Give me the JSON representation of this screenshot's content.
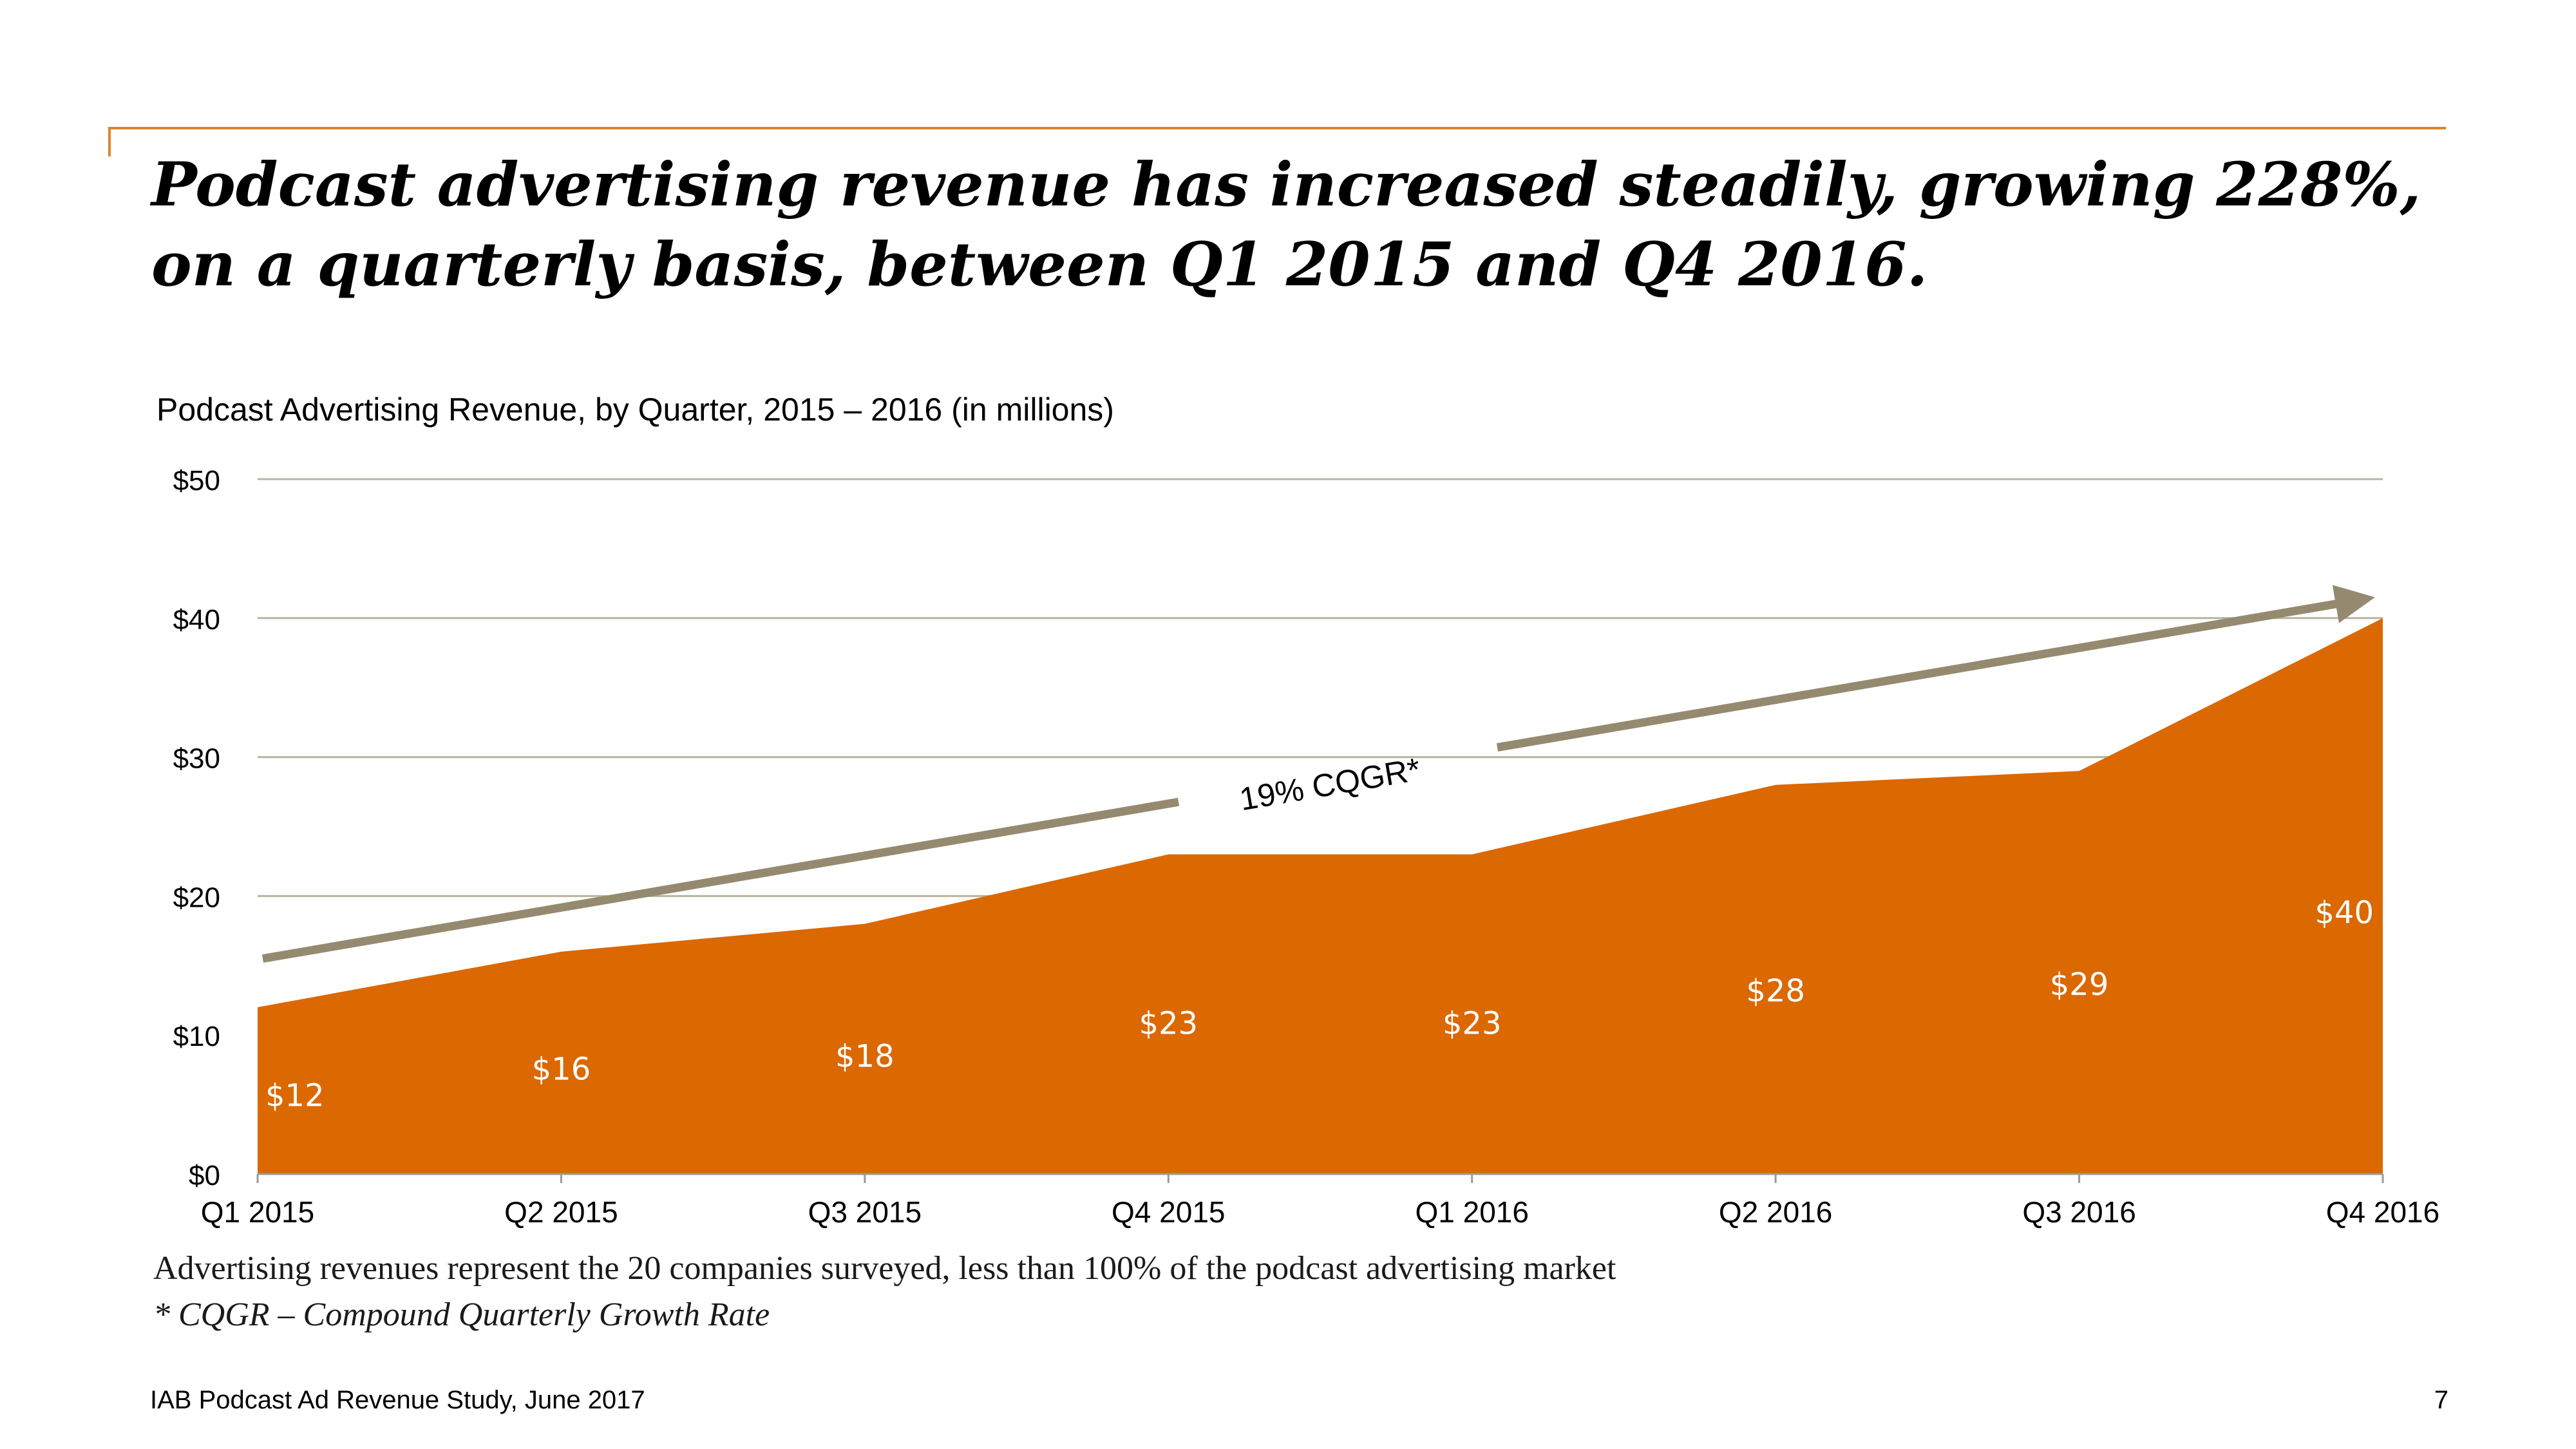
{
  "slide": {
    "headline_line1": "Podcast advertising revenue has increased steadily, growing 228%,",
    "headline_line2": "on a quarterly basis, between Q1 2015 and Q4 2016.",
    "note": "Advertising revenues represent the 20 companies surveyed, less than 100% of the podcast advertising market",
    "footnote": "* CQGR – Compound Quarterly Growth Rate",
    "source": "IAB Podcast Ad Revenue Study, June 2017",
    "page_number": "7"
  },
  "colors": {
    "accent_rule": "#d8862a",
    "area_fill": "#db6800",
    "trend_arrow": "#958a6f",
    "gridline": "#b8b49e"
  },
  "chart_data": {
    "type": "area",
    "title": "Podcast Advertising Revenue, by Quarter, 2015 – 2016 (in millions)",
    "categories": [
      "Q1 2015",
      "Q2 2015",
      "Q3 2015",
      "Q4 2015",
      "Q1 2016",
      "Q2 2016",
      "Q3 2016",
      "Q4 2016"
    ],
    "series": [
      {
        "values": [
          12,
          16,
          18,
          23,
          23,
          28,
          29,
          40
        ],
        "data_labels": [
          "$12",
          "$16",
          "$18",
          "$23",
          "$23",
          "$28",
          "$29",
          "$40"
        ]
      }
    ],
    "ylim": [
      0,
      50
    ],
    "yticks": [
      0,
      10,
      20,
      30,
      40,
      50
    ],
    "ytick_labels": [
      "$0",
      "$10",
      "$20",
      "$30",
      "$40",
      "$50"
    ],
    "grid": true,
    "legend": "none",
    "annotation": {
      "text": "19% CQGR*",
      "type": "trend-arrow",
      "from_value": 15.5,
      "to_value": 41.5
    }
  }
}
